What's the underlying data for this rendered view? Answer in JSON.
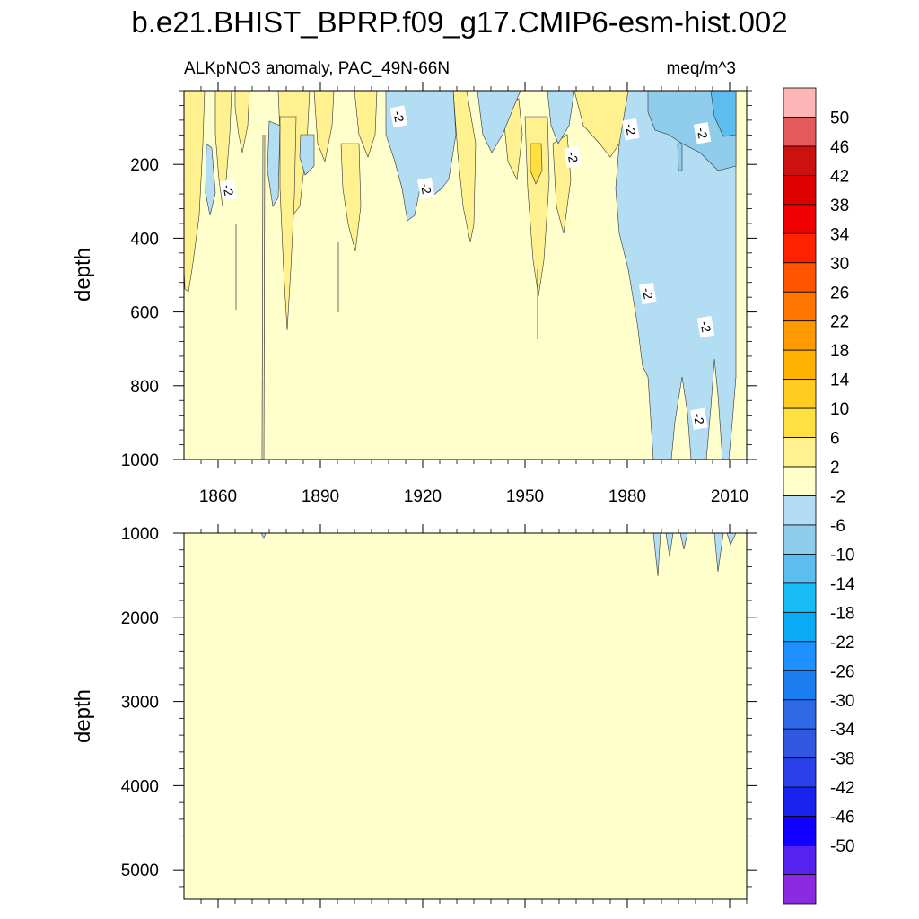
{
  "chart_data": {
    "type": "heatmap",
    "title": "b.e21.BHIST_BPRP.f09_g17.CMIP6-esm-hist.002",
    "subtitle_left": "ALKpNO3 anomaly, PAC_49N-66N",
    "subtitle_right": "meq/m^3",
    "x_axis": {
      "range": [
        1850,
        2015
      ],
      "major_ticks": [
        1860,
        1890,
        1920,
        1950,
        1980,
        2010
      ],
      "tick_labels": [
        "1860",
        "1890",
        "1920",
        "1950",
        "1980",
        "2010"
      ]
    },
    "panels": [
      {
        "name": "upper",
        "ylabel": "depth",
        "ylim": [
          0,
          1000
        ],
        "y_ticks": [
          200,
          400,
          600,
          800,
          1000
        ],
        "y_tick_labels": [
          "200",
          "400",
          "600",
          "800",
          "1000"
        ],
        "contour_labels": [
          {
            "text": "-2",
            "year": 1863,
            "depth": 270
          },
          {
            "text": "-2",
            "year": 1913,
            "depth": 70
          },
          {
            "text": "-2",
            "year": 1921,
            "depth": 265
          },
          {
            "text": "-2",
            "year": 1964,
            "depth": 180
          },
          {
            "text": "-2",
            "year": 1981,
            "depth": 105
          },
          {
            "text": "-2",
            "year": 1986,
            "depth": 550
          },
          {
            "text": "-2",
            "year": 2002,
            "depth": 115
          },
          {
            "text": "-2",
            "year": 2003,
            "depth": 640
          },
          {
            "text": "-2",
            "year": 2001,
            "depth": 890
          }
        ]
      },
      {
        "name": "lower",
        "ylabel": "depth",
        "ylim": [
          1000,
          5350
        ],
        "y_ticks": [
          1000,
          2000,
          3000,
          4000,
          5000
        ],
        "y_tick_labels": [
          "1000",
          "2000",
          "3000",
          "4000",
          "5000"
        ]
      }
    ],
    "colorbar": {
      "levels": [
        "50",
        "46",
        "42",
        "38",
        "34",
        "30",
        "26",
        "22",
        "18",
        "14",
        "10",
        "6",
        "2",
        "-2",
        "-6",
        "-10",
        "-14",
        "-18",
        "-22",
        "-26",
        "-30",
        "-34",
        "-38",
        "-42",
        "-46",
        "-50"
      ],
      "colors": [
        "#fdb6b6",
        "#e45a5a",
        "#cc1111",
        "#dd0000",
        "#f00000",
        "#ff2200",
        "#ff5500",
        "#ff7700",
        "#ff9900",
        "#ffb300",
        "#ffcd22",
        "#ffe040",
        "#fff190",
        "#ffffcc",
        "#b3ddf2",
        "#90ccec",
        "#5cbdf0",
        "#18bdf5",
        "#0aaaf5",
        "#1e90ff",
        "#1a7df0",
        "#2e6ae6",
        "#3257e0",
        "#2a40e8",
        "#1a22ee",
        "#1100ff",
        "#5522ee",
        "#8a2be2"
      ]
    },
    "data_summary": "Mostly near-zero anomaly (-2 to 2) at depth; positive (2 to 10) patches in upper 300 m before 1980; negative (-2 to -14) anomalies from ~1980 onward extending to 1000 m, small negative intrusions below 1000 m after 1990."
  }
}
